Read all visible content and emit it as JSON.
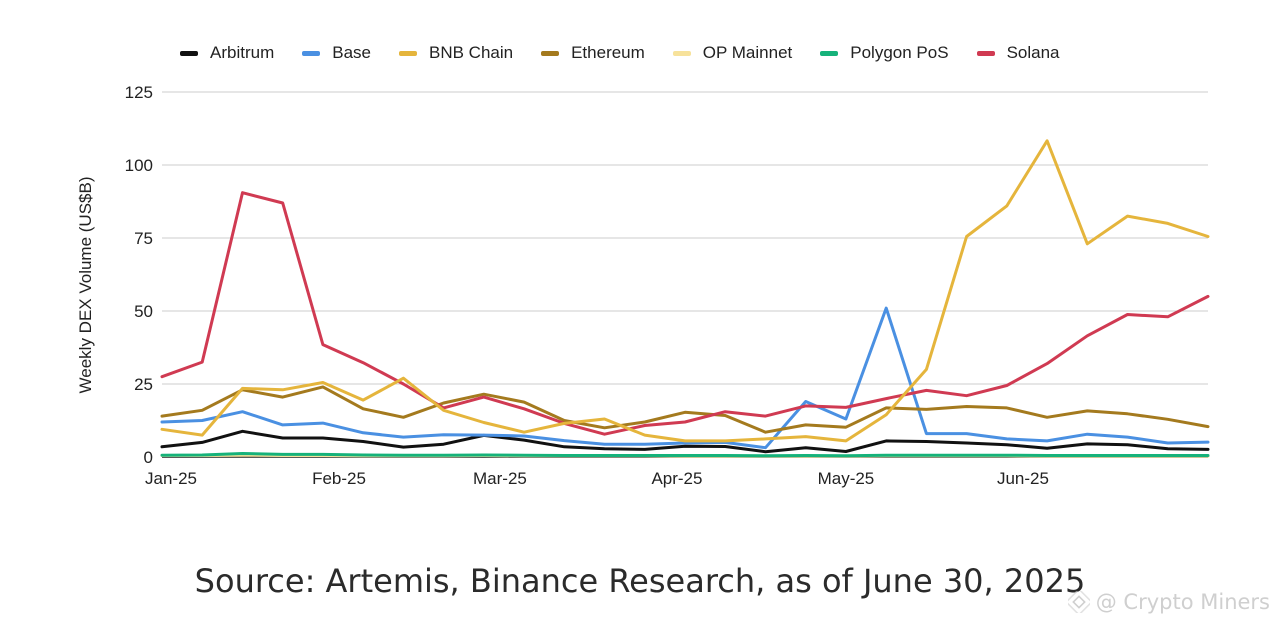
{
  "chart_data": {
    "type": "line",
    "title": "",
    "xlabel": "",
    "ylabel": "Weekly DEX Volume (US$B)",
    "ylim": [
      0,
      125
    ],
    "yticks": [
      "0",
      "25",
      "50",
      "75",
      "100",
      "125"
    ],
    "xtick_labels": [
      "Jan-25",
      "Feb-25",
      "Mar-25",
      "Apr-25",
      "May-25",
      "Jun-25"
    ],
    "grid": "horizontal",
    "legend_position": "top",
    "series": [
      {
        "name": "Arbitrum",
        "color": "#111111",
        "values": [
          3.5,
          5,
          8.8,
          6.5,
          6.5,
          5.3,
          3.4,
          4.4,
          7.4,
          5.8,
          3.5,
          2.8,
          2.6,
          3.7,
          3.6,
          1.8,
          3.2,
          1.9,
          5.5,
          5.3,
          4.8,
          4.2,
          3.0,
          4.5,
          4.2,
          2.8,
          2.6
        ]
      },
      {
        "name": "Base",
        "color": "#4a90e2",
        "values": [
          12.0,
          12.5,
          15.5,
          11.0,
          11.6,
          8.3,
          6.8,
          7.6,
          7.5,
          7.2,
          5.6,
          4.4,
          4.4,
          4.8,
          5.0,
          3.2,
          19.0,
          13.0,
          51.0,
          8.0,
          8.0,
          6.2,
          5.5,
          7.8,
          6.8,
          4.8,
          5.1
        ]
      },
      {
        "name": "BNB Chain",
        "color": "#e5b53c",
        "values": [
          9.5,
          7.5,
          23.5,
          23.0,
          25.5,
          19.5,
          27.0,
          16.0,
          11.8,
          8.5,
          11.5,
          13.0,
          7.5,
          5.5,
          5.5,
          6.2,
          7.0,
          5.5,
          14.5,
          30.0,
          75.5,
          86.0,
          108.3,
          73.0,
          82.5,
          80.0,
          75.5
        ]
      },
      {
        "name": "Ethereum",
        "color": "#a47a1e",
        "values": [
          14.0,
          16.0,
          23.0,
          20.5,
          24.0,
          16.5,
          13.6,
          18.5,
          21.5,
          18.8,
          12.5,
          10.0,
          12.0,
          15.3,
          14.2,
          8.5,
          11.0,
          10.2,
          16.8,
          16.3,
          17.3,
          16.8,
          13.6,
          15.8,
          14.8,
          12.9,
          10.4
        ]
      },
      {
        "name": "OP Mainnet",
        "color": "#f7e29b",
        "values": [
          0.5,
          0.5,
          0.6,
          0.5,
          0.5,
          0.4,
          0.4,
          0.4,
          0.5,
          0.4,
          0.4,
          0.4,
          0.4,
          0.3,
          0.3,
          0.3,
          0.3,
          0.3,
          0.4,
          0.4,
          0.4,
          0.4,
          0.3,
          0.3,
          0.3,
          0.3,
          0.3
        ]
      },
      {
        "name": "Polygon PoS",
        "color": "#16b27a",
        "values": [
          0.6,
          0.7,
          1.2,
          0.9,
          0.9,
          0.7,
          0.6,
          0.6,
          0.7,
          0.6,
          0.5,
          0.5,
          0.5,
          0.5,
          0.5,
          0.4,
          0.5,
          0.4,
          0.6,
          0.6,
          0.6,
          0.6,
          0.5,
          0.5,
          0.5,
          0.5,
          0.5
        ]
      },
      {
        "name": "Solana",
        "color": "#d03a52",
        "values": [
          27.5,
          32.5,
          90.5,
          87.0,
          38.5,
          32.3,
          25.0,
          16.8,
          20.5,
          16.5,
          11.5,
          7.8,
          10.8,
          12.0,
          15.5,
          14.0,
          17.5,
          17.0,
          20.0,
          22.8,
          21.0,
          24.5,
          32.0,
          41.5,
          48.8,
          48.0,
          55.0
        ]
      }
    ]
  },
  "legend": [
    {
      "label": "Arbitrum",
      "color": "#111111"
    },
    {
      "label": "Base",
      "color": "#4a90e2"
    },
    {
      "label": "BNB Chain",
      "color": "#e5b53c"
    },
    {
      "label": "Ethereum",
      "color": "#a47a1e"
    },
    {
      "label": "OP Mainnet",
      "color": "#f7e29b"
    },
    {
      "label": "Polygon PoS",
      "color": "#16b27a"
    },
    {
      "label": "Solana",
      "color": "#d03a52"
    }
  ],
  "source_text": "Source: Artemis, Binance Research, as of June 30, 2025",
  "watermark_text": "@ Crypto Miners",
  "watermark_icon": "binance-square-icon"
}
